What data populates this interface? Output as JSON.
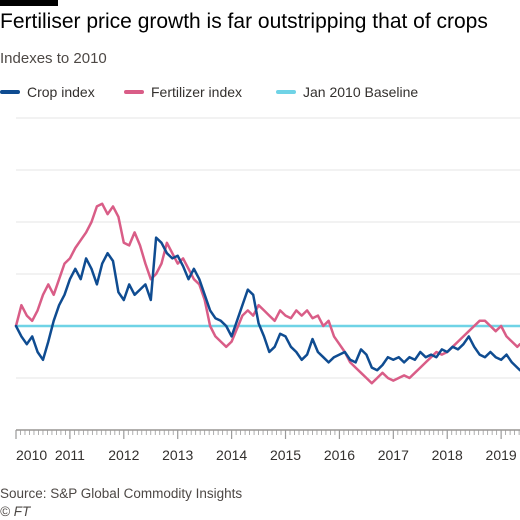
{
  "top_bar_color": "#000000",
  "title": "Fertiliser price growth is far outstripping that of crops",
  "subtitle": "Indexes to 2010",
  "legend": [
    {
      "label": "Crop index",
      "color": "#0f4c91"
    },
    {
      "label": "Fertilizer index",
      "color": "#d95d87"
    },
    {
      "label": "Jan 2010 Baseline",
      "color": "#6fd3e6"
    }
  ],
  "source": "Source: S&P Global Commodity Insights",
  "copyright": "© FT",
  "chart_data": {
    "type": "line",
    "title": "Fertiliser price growth is far outstripping that of crops",
    "subtitle": "Indexes to 2010",
    "xlabel": "",
    "ylabel": "",
    "x_ticks": [
      "2010",
      "2011",
      "2012",
      "2013",
      "2014",
      "2015",
      "2016",
      "2017",
      "2018",
      "2019"
    ],
    "xlim": [
      2010,
      2019.35
    ],
    "ylim": [
      60,
      180
    ],
    "y_gridlines": [
      60,
      80,
      100,
      120,
      140,
      160,
      180
    ],
    "grid": true,
    "legend_position": "top",
    "baseline": {
      "name": "Jan 2010 Baseline",
      "value": 100,
      "color": "#6fd3e6"
    },
    "series": [
      {
        "name": "Crop index",
        "color": "#0f4c91",
        "points": [
          [
            2010.0,
            100
          ],
          [
            2010.1,
            96
          ],
          [
            2010.2,
            93
          ],
          [
            2010.3,
            96
          ],
          [
            2010.4,
            90
          ],
          [
            2010.5,
            87
          ],
          [
            2010.6,
            94
          ],
          [
            2010.7,
            102
          ],
          [
            2010.8,
            108
          ],
          [
            2010.9,
            112
          ],
          [
            2011.0,
            118
          ],
          [
            2011.1,
            122
          ],
          [
            2011.2,
            118
          ],
          [
            2011.3,
            126
          ],
          [
            2011.4,
            122
          ],
          [
            2011.5,
            116
          ],
          [
            2011.6,
            124
          ],
          [
            2011.7,
            128
          ],
          [
            2011.8,
            125
          ],
          [
            2011.9,
            113
          ],
          [
            2012.0,
            110
          ],
          [
            2012.1,
            116
          ],
          [
            2012.2,
            112
          ],
          [
            2012.3,
            114
          ],
          [
            2012.4,
            116
          ],
          [
            2012.5,
            110
          ],
          [
            2012.6,
            134
          ],
          [
            2012.7,
            132
          ],
          [
            2012.8,
            128
          ],
          [
            2012.9,
            126
          ],
          [
            2013.0,
            127
          ],
          [
            2013.1,
            123
          ],
          [
            2013.2,
            118
          ],
          [
            2013.3,
            122
          ],
          [
            2013.4,
            118
          ],
          [
            2013.5,
            112
          ],
          [
            2013.6,
            106
          ],
          [
            2013.7,
            103
          ],
          [
            2013.8,
            102
          ],
          [
            2013.9,
            100
          ],
          [
            2014.0,
            96
          ],
          [
            2014.1,
            102
          ],
          [
            2014.2,
            108
          ],
          [
            2014.3,
            114
          ],
          [
            2014.4,
            112
          ],
          [
            2014.5,
            101
          ],
          [
            2014.6,
            96
          ],
          [
            2014.7,
            90
          ],
          [
            2014.8,
            92
          ],
          [
            2014.9,
            97
          ],
          [
            2015.0,
            96
          ],
          [
            2015.1,
            92
          ],
          [
            2015.2,
            90
          ],
          [
            2015.3,
            87
          ],
          [
            2015.4,
            89
          ],
          [
            2015.5,
            95
          ],
          [
            2015.6,
            90
          ],
          [
            2015.7,
            88
          ],
          [
            2015.8,
            86
          ],
          [
            2015.9,
            88
          ],
          [
            2016.0,
            89
          ],
          [
            2016.1,
            90
          ],
          [
            2016.2,
            87
          ],
          [
            2016.3,
            86
          ],
          [
            2016.4,
            91
          ],
          [
            2016.5,
            89
          ],
          [
            2016.6,
            84
          ],
          [
            2016.7,
            83
          ],
          [
            2016.8,
            85
          ],
          [
            2016.9,
            88
          ],
          [
            2017.0,
            87
          ],
          [
            2017.1,
            88
          ],
          [
            2017.2,
            86
          ],
          [
            2017.3,
            88
          ],
          [
            2017.4,
            87
          ],
          [
            2017.5,
            90
          ],
          [
            2017.6,
            88
          ],
          [
            2017.7,
            89
          ],
          [
            2017.8,
            88
          ],
          [
            2017.9,
            91
          ],
          [
            2018.0,
            90
          ],
          [
            2018.1,
            92
          ],
          [
            2018.2,
            91
          ],
          [
            2018.3,
            93
          ],
          [
            2018.4,
            96
          ],
          [
            2018.5,
            92
          ],
          [
            2018.6,
            89
          ],
          [
            2018.7,
            88
          ],
          [
            2018.8,
            90
          ],
          [
            2018.9,
            88
          ],
          [
            2019.0,
            87
          ],
          [
            2019.1,
            89
          ],
          [
            2019.2,
            86
          ],
          [
            2019.3,
            84
          ],
          [
            2019.35,
            83
          ]
        ]
      },
      {
        "name": "Fertilizer index",
        "color": "#d95d87",
        "points": [
          [
            2010.0,
            100
          ],
          [
            2010.1,
            108
          ],
          [
            2010.2,
            104
          ],
          [
            2010.3,
            102
          ],
          [
            2010.4,
            106
          ],
          [
            2010.5,
            112
          ],
          [
            2010.6,
            116
          ],
          [
            2010.7,
            112
          ],
          [
            2010.8,
            118
          ],
          [
            2010.9,
            124
          ],
          [
            2011.0,
            126
          ],
          [
            2011.1,
            130
          ],
          [
            2011.2,
            133
          ],
          [
            2011.3,
            136
          ],
          [
            2011.4,
            140
          ],
          [
            2011.5,
            146
          ],
          [
            2011.6,
            147
          ],
          [
            2011.7,
            143
          ],
          [
            2011.8,
            146
          ],
          [
            2011.9,
            142
          ],
          [
            2012.0,
            132
          ],
          [
            2012.1,
            131
          ],
          [
            2012.2,
            136
          ],
          [
            2012.3,
            131
          ],
          [
            2012.4,
            124
          ],
          [
            2012.5,
            118
          ],
          [
            2012.6,
            120
          ],
          [
            2012.7,
            124
          ],
          [
            2012.8,
            132
          ],
          [
            2012.9,
            128
          ],
          [
            2013.0,
            124
          ],
          [
            2013.1,
            126
          ],
          [
            2013.2,
            122
          ],
          [
            2013.3,
            118
          ],
          [
            2013.4,
            116
          ],
          [
            2013.5,
            110
          ],
          [
            2013.6,
            100
          ],
          [
            2013.7,
            96
          ],
          [
            2013.8,
            94
          ],
          [
            2013.9,
            92
          ],
          [
            2014.0,
            94
          ],
          [
            2014.1,
            99
          ],
          [
            2014.2,
            104
          ],
          [
            2014.3,
            106
          ],
          [
            2014.4,
            104
          ],
          [
            2014.5,
            108
          ],
          [
            2014.6,
            106
          ],
          [
            2014.7,
            104
          ],
          [
            2014.8,
            102
          ],
          [
            2014.9,
            106
          ],
          [
            2015.0,
            104
          ],
          [
            2015.1,
            103
          ],
          [
            2015.2,
            106
          ],
          [
            2015.3,
            104
          ],
          [
            2015.4,
            106
          ],
          [
            2015.5,
            103
          ],
          [
            2015.6,
            104
          ],
          [
            2015.7,
            100
          ],
          [
            2015.8,
            102
          ],
          [
            2015.9,
            96
          ],
          [
            2016.0,
            93
          ],
          [
            2016.1,
            90
          ],
          [
            2016.2,
            86
          ],
          [
            2016.3,
            84
          ],
          [
            2016.4,
            82
          ],
          [
            2016.5,
            80
          ],
          [
            2016.6,
            78
          ],
          [
            2016.7,
            80
          ],
          [
            2016.8,
            82
          ],
          [
            2016.9,
            80
          ],
          [
            2017.0,
            79
          ],
          [
            2017.1,
            80
          ],
          [
            2017.2,
            81
          ],
          [
            2017.3,
            80
          ],
          [
            2017.4,
            82
          ],
          [
            2017.5,
            84
          ],
          [
            2017.6,
            86
          ],
          [
            2017.7,
            88
          ],
          [
            2017.8,
            90
          ],
          [
            2017.9,
            89
          ],
          [
            2018.0,
            90
          ],
          [
            2018.1,
            92
          ],
          [
            2018.2,
            94
          ],
          [
            2018.3,
            96
          ],
          [
            2018.4,
            98
          ],
          [
            2018.5,
            100
          ],
          [
            2018.6,
            102
          ],
          [
            2018.7,
            102
          ],
          [
            2018.8,
            100
          ],
          [
            2018.9,
            98
          ],
          [
            2019.0,
            100
          ],
          [
            2019.1,
            96
          ],
          [
            2019.2,
            94
          ],
          [
            2019.3,
            92
          ],
          [
            2019.35,
            93
          ]
        ]
      }
    ]
  }
}
